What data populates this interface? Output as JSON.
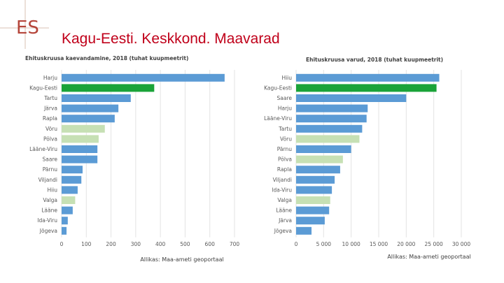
{
  "slide": {
    "logo_text": "ES",
    "title": "Kagu-Eesti. Keskkond. Maavarad",
    "colors": {
      "title_red": "#c0001a",
      "bar_default": "#5b9bd5",
      "bar_highlight": "#1aa338",
      "bar_light": "#c6e0b4"
    }
  },
  "chart_data": [
    {
      "type": "bar",
      "orientation": "horizontal",
      "title": "Ehituskruusa kaevandamine, 2018 (tuhat kuupmeetrit)",
      "categories": [
        "Harju",
        "Kagu-Eesti",
        "Tartu",
        "Järva",
        "Rapla",
        "Võru",
        "Põlva",
        "Lääne-Viru",
        "Saare",
        "Pärnu",
        "Viljandi",
        "Hiiu",
        "Valga",
        "Lääne",
        "Ida-Viru",
        "Jõgeva"
      ],
      "values": [
        660,
        375,
        280,
        230,
        215,
        175,
        150,
        145,
        145,
        85,
        80,
        65,
        55,
        45,
        25,
        20
      ],
      "bar_style": [
        "default",
        "highlight",
        "default",
        "default",
        "default",
        "light",
        "light",
        "default",
        "default",
        "default",
        "default",
        "default",
        "light",
        "default",
        "default",
        "default"
      ],
      "xlim": [
        0,
        700
      ],
      "xticks": [
        0,
        100,
        200,
        300,
        400,
        500,
        600,
        700
      ],
      "xtick_labels": [
        "0",
        "100",
        "200",
        "300",
        "400",
        "500",
        "600",
        "700"
      ],
      "source": "Allikas: Maa-ameti geoportaal"
    },
    {
      "type": "bar",
      "orientation": "horizontal",
      "title": "Ehituskruusa varud, 2018 (tuhat kuupmeetrit)",
      "categories": [
        "Hiiu",
        "Kagu-Eesti",
        "Saare",
        "Harju",
        "Lääne-Viru",
        "Tartu",
        "Võru",
        "Pärnu",
        "Põlva",
        "Rapla",
        "Viljandi",
        "Ida-Viru",
        "Valga",
        "Lääne",
        "Järva",
        "Jõgeva"
      ],
      "values": [
        26000,
        25500,
        20000,
        13000,
        12800,
        12000,
        11500,
        10000,
        8500,
        8000,
        7000,
        6500,
        6200,
        6000,
        5200,
        2800
      ],
      "bar_style": [
        "default",
        "highlight",
        "default",
        "default",
        "default",
        "default",
        "light",
        "default",
        "light",
        "default",
        "default",
        "default",
        "light",
        "default",
        "default",
        "default"
      ],
      "xlim": [
        0,
        30000
      ],
      "xticks": [
        0,
        5000,
        10000,
        15000,
        20000,
        25000,
        30000
      ],
      "xtick_labels": [
        "0",
        "5 000",
        "10 000",
        "15 000",
        "20 000",
        "25 000",
        "30 000"
      ],
      "source": "Allikas: Maa-ameti geoportaal"
    }
  ]
}
